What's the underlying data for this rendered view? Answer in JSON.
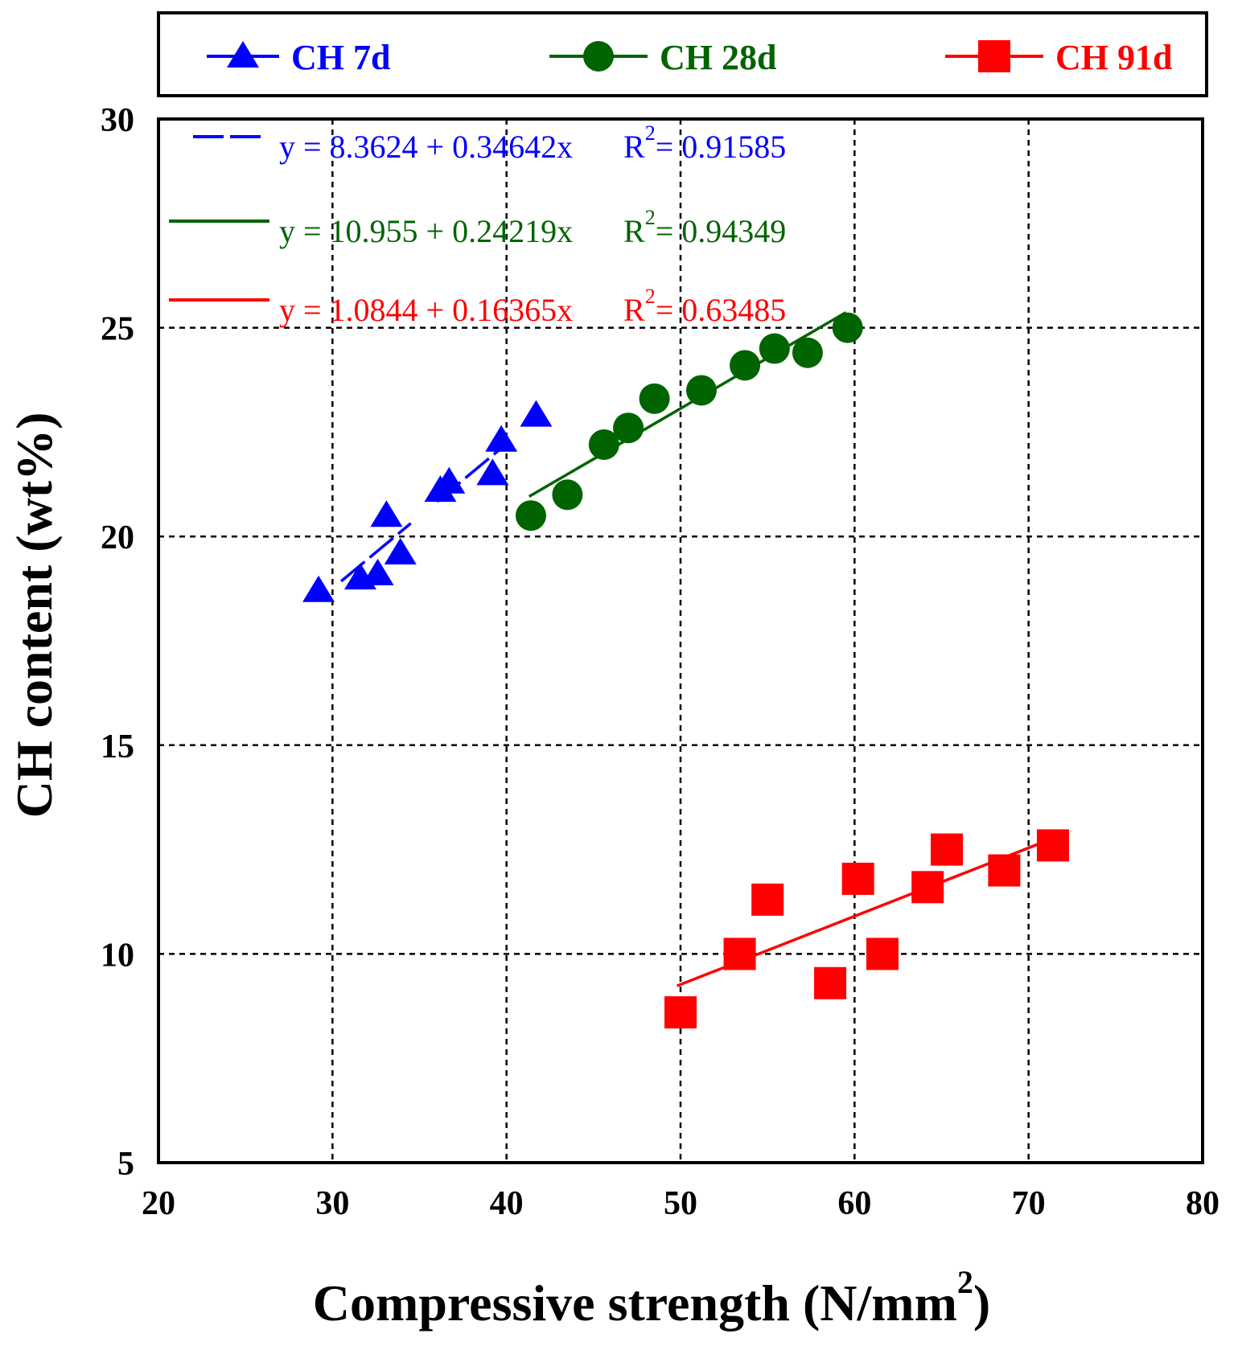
{
  "chart_data": {
    "type": "scatter",
    "xlabel": "Compressive strength (N/mm",
    "xlabel_sup": "2",
    "xlabel_end": ")",
    "ylabel": "CH content (wt%)",
    "xlim": [
      20,
      80
    ],
    "ylim": [
      5,
      30
    ],
    "xticks": [
      "20",
      "30",
      "40",
      "50",
      "60",
      "70",
      "80"
    ],
    "yticks": [
      "5",
      "10",
      "15",
      "20",
      "25",
      "30"
    ],
    "grid": true,
    "legend_position": "top",
    "series": [
      {
        "name": "CH 7d",
        "color": "#0000ff",
        "marker": "triangle",
        "line_style": "dashed",
        "equation": "y = 8.3624 + 0.34642x",
        "r2_label": "R",
        "r2_sup": "2",
        "r2_value": "= 0.91585",
        "fit": {
          "intercept": 8.3624,
          "slope": 0.34642,
          "x_range": [
            30.5,
            34.5
          ],
          "x_range2": [
            36,
            40
          ]
        },
        "points": [
          {
            "x": 29.2,
            "y": 18.7
          },
          {
            "x": 31.6,
            "y": 19.0
          },
          {
            "x": 32.6,
            "y": 19.1
          },
          {
            "x": 33.1,
            "y": 20.5
          },
          {
            "x": 33.9,
            "y": 19.6
          },
          {
            "x": 36.2,
            "y": 21.1
          },
          {
            "x": 36.7,
            "y": 21.3
          },
          {
            "x": 39.2,
            "y": 21.5
          },
          {
            "x": 39.7,
            "y": 22.3
          },
          {
            "x": 41.7,
            "y": 22.9
          }
        ]
      },
      {
        "name": "CH 28d",
        "color": "#006400",
        "marker": "circle",
        "line_style": "solid",
        "equation": "y = 10.955 + 0.24219x",
        "r2_label": "R",
        "r2_sup": "2",
        "r2_value": "= 0.94349",
        "fit": {
          "intercept": 10.955,
          "slope": 0.24219,
          "x_range": [
            41.3,
            59.5
          ]
        },
        "points": [
          {
            "x": 41.4,
            "y": 20.5
          },
          {
            "x": 43.5,
            "y": 21.0
          },
          {
            "x": 45.6,
            "y": 22.2
          },
          {
            "x": 47.0,
            "y": 22.6
          },
          {
            "x": 48.5,
            "y": 23.3
          },
          {
            "x": 51.2,
            "y": 23.5
          },
          {
            "x": 53.7,
            "y": 24.1
          },
          {
            "x": 55.4,
            "y": 24.5
          },
          {
            "x": 57.3,
            "y": 24.4
          },
          {
            "x": 59.6,
            "y": 25.0
          }
        ]
      },
      {
        "name": "CH 91d",
        "color": "#ff0000",
        "marker": "square",
        "line_style": "solid",
        "equation": "y = 1.0844 + 0.16365x",
        "r2_label": "R",
        "r2_sup": "2",
        "r2_value": "= 0.63485",
        "fit": {
          "intercept": 1.0844,
          "slope": 0.16365,
          "x_range": [
            49.8,
            71.5
          ]
        },
        "points": [
          {
            "x": 50.0,
            "y": 8.6
          },
          {
            "x": 53.4,
            "y": 10.0
          },
          {
            "x": 55.0,
            "y": 11.3
          },
          {
            "x": 58.6,
            "y": 9.3
          },
          {
            "x": 60.2,
            "y": 11.8
          },
          {
            "x": 61.6,
            "y": 10.0
          },
          {
            "x": 64.2,
            "y": 11.6
          },
          {
            "x": 65.3,
            "y": 12.5
          },
          {
            "x": 68.6,
            "y": 12.0
          },
          {
            "x": 71.4,
            "y": 12.6
          }
        ]
      }
    ]
  }
}
